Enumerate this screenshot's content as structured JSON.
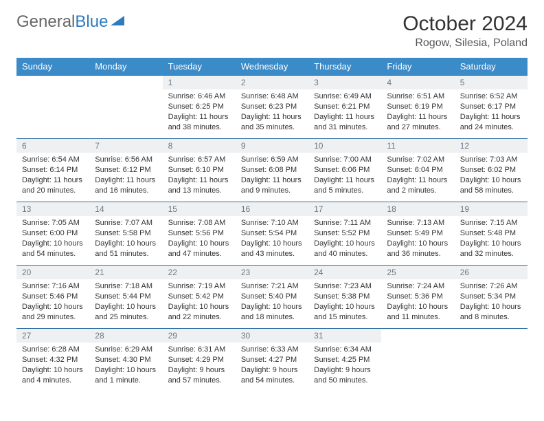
{
  "logo": {
    "text_gray": "General",
    "text_blue": "Blue"
  },
  "title": "October 2024",
  "location": "Rogow, Silesia, Poland",
  "colors": {
    "header_bg": "#3b8bc9",
    "header_text": "#ffffff",
    "daynum_bg": "#eef0f2",
    "daynum_text": "#6a7a88",
    "row_border": "#2f6fa3",
    "body_text": "#333333",
    "logo_gray": "#666666",
    "logo_blue": "#2f7bbf"
  },
  "day_headers": [
    "Sunday",
    "Monday",
    "Tuesday",
    "Wednesday",
    "Thursday",
    "Friday",
    "Saturday"
  ],
  "weeks": [
    [
      null,
      null,
      {
        "n": "1",
        "sr": "Sunrise: 6:46 AM",
        "ss": "Sunset: 6:25 PM",
        "d1": "Daylight: 11 hours",
        "d2": "and 38 minutes."
      },
      {
        "n": "2",
        "sr": "Sunrise: 6:48 AM",
        "ss": "Sunset: 6:23 PM",
        "d1": "Daylight: 11 hours",
        "d2": "and 35 minutes."
      },
      {
        "n": "3",
        "sr": "Sunrise: 6:49 AM",
        "ss": "Sunset: 6:21 PM",
        "d1": "Daylight: 11 hours",
        "d2": "and 31 minutes."
      },
      {
        "n": "4",
        "sr": "Sunrise: 6:51 AM",
        "ss": "Sunset: 6:19 PM",
        "d1": "Daylight: 11 hours",
        "d2": "and 27 minutes."
      },
      {
        "n": "5",
        "sr": "Sunrise: 6:52 AM",
        "ss": "Sunset: 6:17 PM",
        "d1": "Daylight: 11 hours",
        "d2": "and 24 minutes."
      }
    ],
    [
      {
        "n": "6",
        "sr": "Sunrise: 6:54 AM",
        "ss": "Sunset: 6:14 PM",
        "d1": "Daylight: 11 hours",
        "d2": "and 20 minutes."
      },
      {
        "n": "7",
        "sr": "Sunrise: 6:56 AM",
        "ss": "Sunset: 6:12 PM",
        "d1": "Daylight: 11 hours",
        "d2": "and 16 minutes."
      },
      {
        "n": "8",
        "sr": "Sunrise: 6:57 AM",
        "ss": "Sunset: 6:10 PM",
        "d1": "Daylight: 11 hours",
        "d2": "and 13 minutes."
      },
      {
        "n": "9",
        "sr": "Sunrise: 6:59 AM",
        "ss": "Sunset: 6:08 PM",
        "d1": "Daylight: 11 hours",
        "d2": "and 9 minutes."
      },
      {
        "n": "10",
        "sr": "Sunrise: 7:00 AM",
        "ss": "Sunset: 6:06 PM",
        "d1": "Daylight: 11 hours",
        "d2": "and 5 minutes."
      },
      {
        "n": "11",
        "sr": "Sunrise: 7:02 AM",
        "ss": "Sunset: 6:04 PM",
        "d1": "Daylight: 11 hours",
        "d2": "and 2 minutes."
      },
      {
        "n": "12",
        "sr": "Sunrise: 7:03 AM",
        "ss": "Sunset: 6:02 PM",
        "d1": "Daylight: 10 hours",
        "d2": "and 58 minutes."
      }
    ],
    [
      {
        "n": "13",
        "sr": "Sunrise: 7:05 AM",
        "ss": "Sunset: 6:00 PM",
        "d1": "Daylight: 10 hours",
        "d2": "and 54 minutes."
      },
      {
        "n": "14",
        "sr": "Sunrise: 7:07 AM",
        "ss": "Sunset: 5:58 PM",
        "d1": "Daylight: 10 hours",
        "d2": "and 51 minutes."
      },
      {
        "n": "15",
        "sr": "Sunrise: 7:08 AM",
        "ss": "Sunset: 5:56 PM",
        "d1": "Daylight: 10 hours",
        "d2": "and 47 minutes."
      },
      {
        "n": "16",
        "sr": "Sunrise: 7:10 AM",
        "ss": "Sunset: 5:54 PM",
        "d1": "Daylight: 10 hours",
        "d2": "and 43 minutes."
      },
      {
        "n": "17",
        "sr": "Sunrise: 7:11 AM",
        "ss": "Sunset: 5:52 PM",
        "d1": "Daylight: 10 hours",
        "d2": "and 40 minutes."
      },
      {
        "n": "18",
        "sr": "Sunrise: 7:13 AM",
        "ss": "Sunset: 5:49 PM",
        "d1": "Daylight: 10 hours",
        "d2": "and 36 minutes."
      },
      {
        "n": "19",
        "sr": "Sunrise: 7:15 AM",
        "ss": "Sunset: 5:48 PM",
        "d1": "Daylight: 10 hours",
        "d2": "and 32 minutes."
      }
    ],
    [
      {
        "n": "20",
        "sr": "Sunrise: 7:16 AM",
        "ss": "Sunset: 5:46 PM",
        "d1": "Daylight: 10 hours",
        "d2": "and 29 minutes."
      },
      {
        "n": "21",
        "sr": "Sunrise: 7:18 AM",
        "ss": "Sunset: 5:44 PM",
        "d1": "Daylight: 10 hours",
        "d2": "and 25 minutes."
      },
      {
        "n": "22",
        "sr": "Sunrise: 7:19 AM",
        "ss": "Sunset: 5:42 PM",
        "d1": "Daylight: 10 hours",
        "d2": "and 22 minutes."
      },
      {
        "n": "23",
        "sr": "Sunrise: 7:21 AM",
        "ss": "Sunset: 5:40 PM",
        "d1": "Daylight: 10 hours",
        "d2": "and 18 minutes."
      },
      {
        "n": "24",
        "sr": "Sunrise: 7:23 AM",
        "ss": "Sunset: 5:38 PM",
        "d1": "Daylight: 10 hours",
        "d2": "and 15 minutes."
      },
      {
        "n": "25",
        "sr": "Sunrise: 7:24 AM",
        "ss": "Sunset: 5:36 PM",
        "d1": "Daylight: 10 hours",
        "d2": "and 11 minutes."
      },
      {
        "n": "26",
        "sr": "Sunrise: 7:26 AM",
        "ss": "Sunset: 5:34 PM",
        "d1": "Daylight: 10 hours",
        "d2": "and 8 minutes."
      }
    ],
    [
      {
        "n": "27",
        "sr": "Sunrise: 6:28 AM",
        "ss": "Sunset: 4:32 PM",
        "d1": "Daylight: 10 hours",
        "d2": "and 4 minutes."
      },
      {
        "n": "28",
        "sr": "Sunrise: 6:29 AM",
        "ss": "Sunset: 4:30 PM",
        "d1": "Daylight: 10 hours",
        "d2": "and 1 minute."
      },
      {
        "n": "29",
        "sr": "Sunrise: 6:31 AM",
        "ss": "Sunset: 4:29 PM",
        "d1": "Daylight: 9 hours",
        "d2": "and 57 minutes."
      },
      {
        "n": "30",
        "sr": "Sunrise: 6:33 AM",
        "ss": "Sunset: 4:27 PM",
        "d1": "Daylight: 9 hours",
        "d2": "and 54 minutes."
      },
      {
        "n": "31",
        "sr": "Sunrise: 6:34 AM",
        "ss": "Sunset: 4:25 PM",
        "d1": "Daylight: 9 hours",
        "d2": "and 50 minutes."
      },
      null,
      null
    ]
  ]
}
